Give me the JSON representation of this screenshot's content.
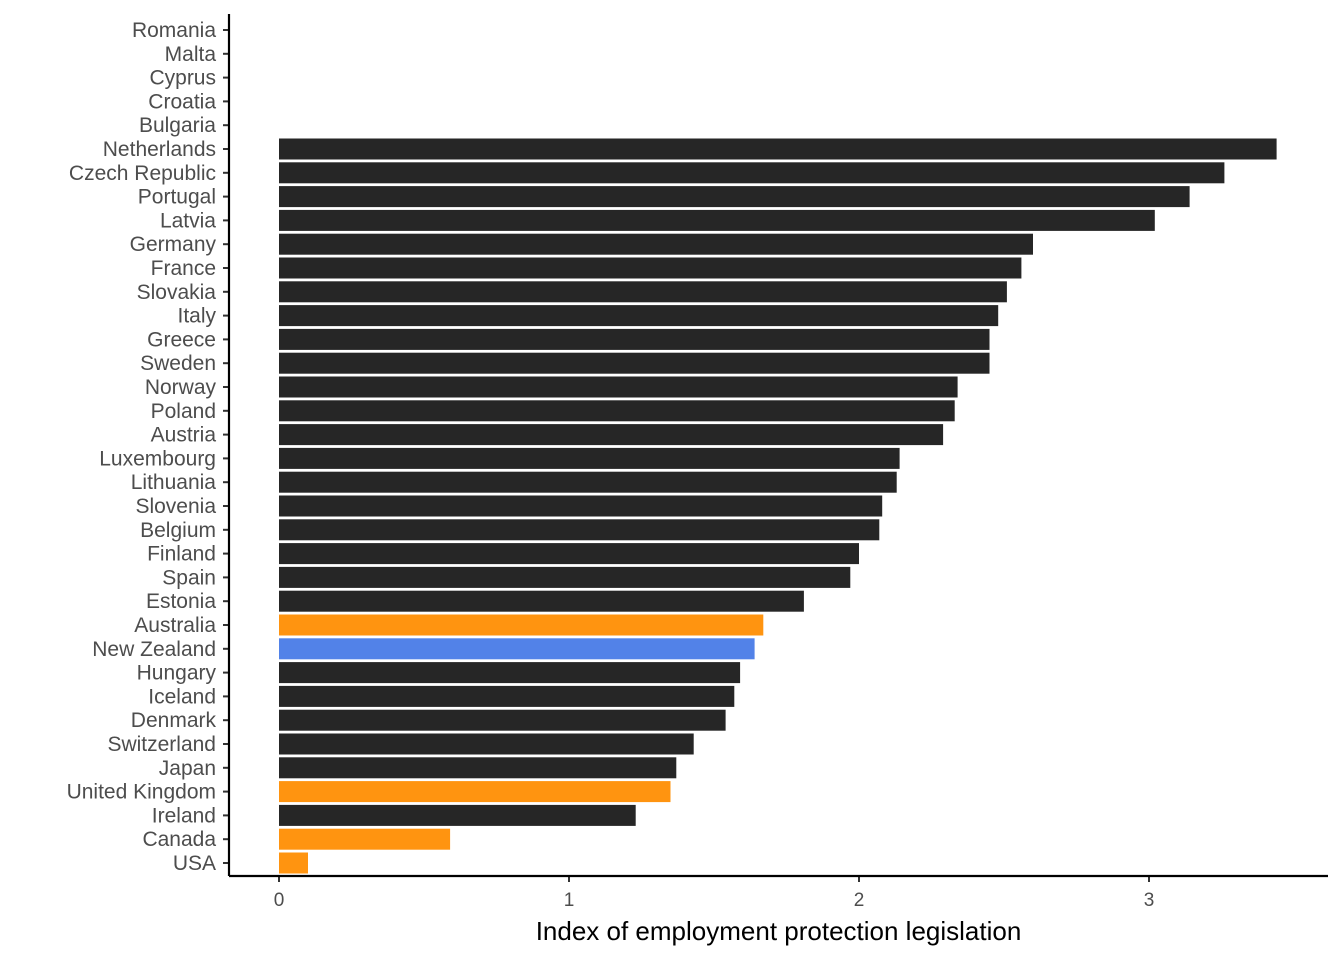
{
  "chart_data": {
    "type": "bar",
    "orientation": "horizontal",
    "title": "",
    "xlabel": "Index of employment protection legislation",
    "ylabel": "",
    "xlim": [
      -0.17,
      3.63
    ],
    "xticks": [
      0,
      1,
      2,
      3
    ],
    "grid": false,
    "legend": "none",
    "categories": [
      "Romania",
      "Malta",
      "Cyprus",
      "Croatia",
      "Bulgaria",
      "Netherlands",
      "Czech Republic",
      "Portugal",
      "Latvia",
      "Germany",
      "France",
      "Slovakia",
      "Italy",
      "Greece",
      "Sweden",
      "Norway",
      "Poland",
      "Austria",
      "Luxembourg",
      "Lithuania",
      "Slovenia",
      "Belgium",
      "Finland",
      "Spain",
      "Estonia",
      "Australia",
      "New Zealand",
      "Hungary",
      "Iceland",
      "Denmark",
      "Switzerland",
      "Japan",
      "United Kingdom",
      "Ireland",
      "Canada",
      "USA"
    ],
    "values": [
      null,
      null,
      null,
      null,
      null,
      3.44,
      3.26,
      3.14,
      3.02,
      2.6,
      2.56,
      2.51,
      2.48,
      2.45,
      2.45,
      2.34,
      2.33,
      2.29,
      2.14,
      2.13,
      2.08,
      2.07,
      2.0,
      1.97,
      1.81,
      1.67,
      1.64,
      1.59,
      1.57,
      1.54,
      1.43,
      1.37,
      1.35,
      1.23,
      0.59,
      0.1
    ],
    "bar_colors": [
      "#262626",
      "#262626",
      "#262626",
      "#262626",
      "#262626",
      "#262626",
      "#262626",
      "#262626",
      "#262626",
      "#262626",
      "#262626",
      "#262626",
      "#262626",
      "#262626",
      "#262626",
      "#262626",
      "#262626",
      "#262626",
      "#262626",
      "#262626",
      "#262626",
      "#262626",
      "#262626",
      "#262626",
      "#262626",
      "#ff9410",
      "#5282e8",
      "#262626",
      "#262626",
      "#262626",
      "#262626",
      "#262626",
      "#ff9410",
      "#262626",
      "#ff9410",
      "#ff9410"
    ]
  },
  "colors": {
    "default_bar": "#262626",
    "highlight_orange": "#ff9410",
    "highlight_blue": "#5282e8",
    "axis": "#000000",
    "label_text": "#4d4d4d"
  }
}
